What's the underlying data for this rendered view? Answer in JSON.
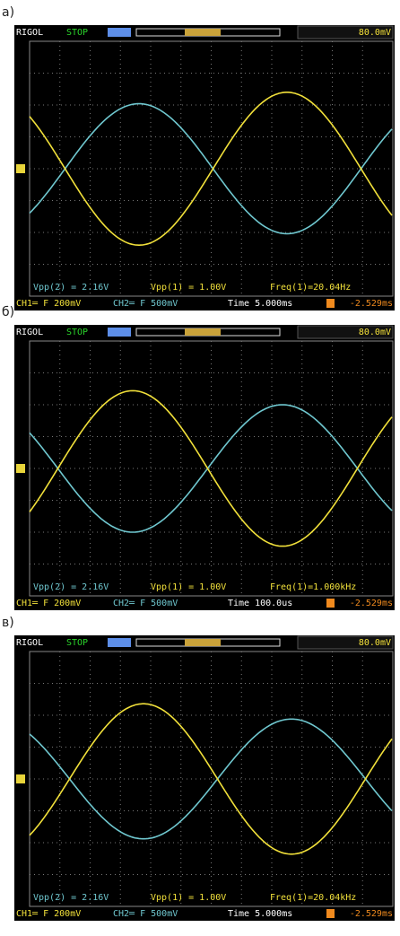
{
  "panels": [
    {
      "label": "а)",
      "top_bar": {
        "brand": "RIGOL",
        "status": "STOP",
        "trigger_level": "80.0mV"
      },
      "measurements": [
        "Vpp(2) = 2.16V",
        "Vpp(1) = 1.00V",
        "Freq(1)=20.04Hz"
      ],
      "bottom_bar": {
        "ch1": "CH1═ F 200mV",
        "ch2": "CH2═ F 500mV",
        "time": "Time 5.000ms",
        "offset": "-2.529ms"
      }
    },
    {
      "label": "б)",
      "top_bar": {
        "brand": "RIGOL",
        "status": "STOP",
        "trigger_level": "80.0mV"
      },
      "measurements": [
        "Vpp(2) = 2.16V",
        "Vpp(1) = 1.00V",
        "Freq(1)=1.000kHz"
      ],
      "bottom_bar": {
        "ch1": "CH1═ F 200mV",
        "ch2": "CH2═ F 500mV",
        "time": "Time 100.0us",
        "offset": "-2.529ms"
      }
    },
    {
      "label": "в)",
      "top_bar": {
        "brand": "RIGOL",
        "status": "STOP",
        "trigger_level": "80.0mV"
      },
      "measurements": [
        "Vpp(2) = 2.16V",
        "Vpp(1) = 1.00V",
        "Freq(1)=20.04kHz"
      ],
      "bottom_bar": {
        "ch1": "CH1═ F 200mV",
        "ch2": "CH2═ F 500mV",
        "time": "Time 5.000ms",
        "offset": "-2.529ms"
      }
    }
  ]
}
